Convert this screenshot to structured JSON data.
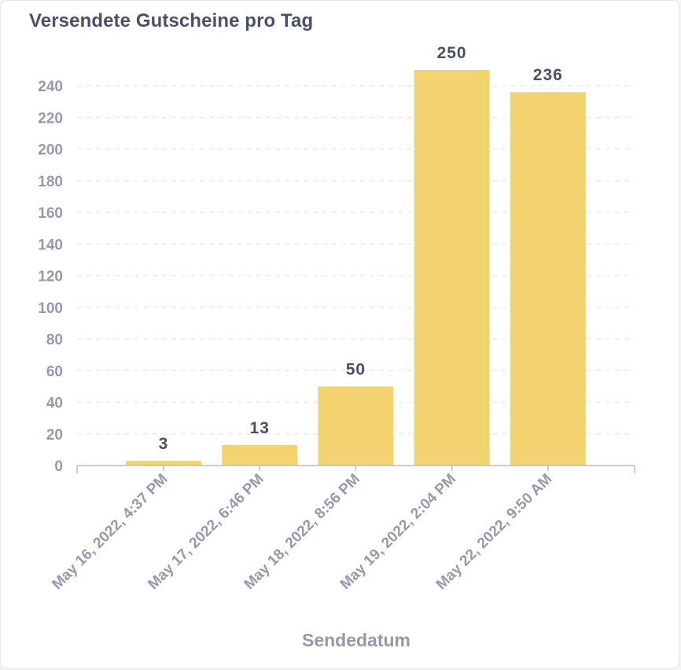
{
  "card": {
    "title": "Versendete Gutscheine pro Tag"
  },
  "colors": {
    "bar": "#f3d371",
    "grid": "#e9ebef",
    "axis": "#b9bec9",
    "tick_text": "#949aab",
    "label_text": "#4a5167"
  },
  "chart_data": {
    "type": "bar",
    "title": "Versendete Gutscheine pro Tag",
    "xlabel": "Sendedatum",
    "ylabel": "",
    "categories": [
      "May 16, 2022, 4:37 PM",
      "May 17, 2022, 6:46 PM",
      "May 18, 2022, 8:56 PM",
      "May 19, 2022, 2:04 PM",
      "May 22, 2022, 9:50 AM"
    ],
    "values": [
      3,
      13,
      50,
      250,
      236
    ],
    "data_labels": [
      "3",
      "13",
      "50",
      "250",
      "236"
    ],
    "ylim": [
      0,
      250
    ],
    "yticks": [
      0,
      20,
      40,
      60,
      80,
      100,
      120,
      140,
      160,
      180,
      200,
      220,
      240
    ],
    "grid": true,
    "legend": "none"
  }
}
